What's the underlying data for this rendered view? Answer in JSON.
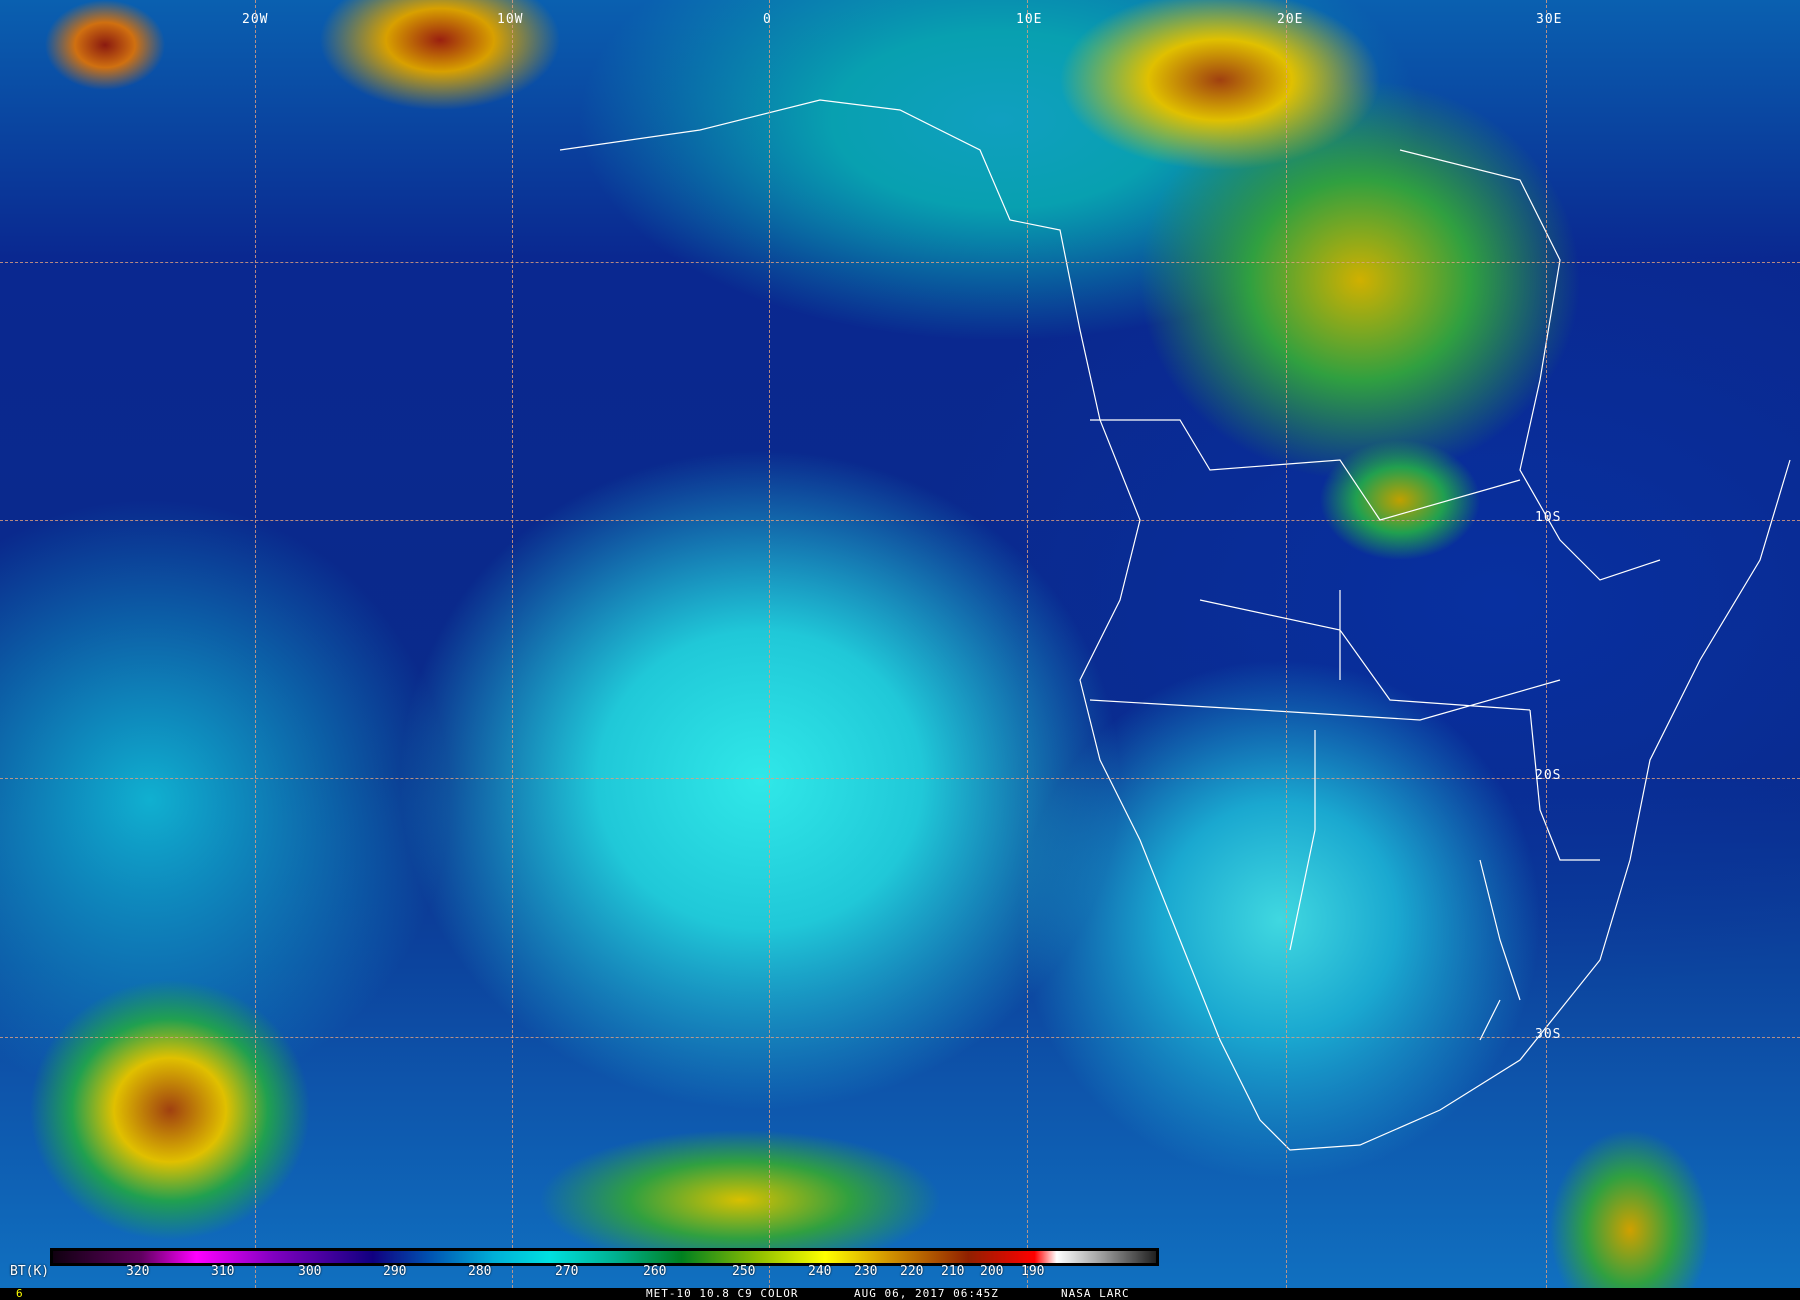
{
  "map": {
    "longitude_labels": [
      "20W",
      "10W",
      "0",
      "10E",
      "20E",
      "30E"
    ],
    "latitude_labels": [
      "10S",
      "20S",
      "30S"
    ],
    "grid_line_color": "#e0a080",
    "coastline_color": "#ffffff"
  },
  "colorbar": {
    "unit_label": "BT(K)",
    "ticks": [
      "320",
      "310",
      "300",
      "290",
      "280",
      "270",
      "260",
      "250",
      "240",
      "230",
      "220",
      "210",
      "200",
      "190"
    ]
  },
  "footer": {
    "frame_number": "6",
    "product": "MET-10 10.8 C9 COLOR",
    "datetime": "AUG 06, 2017 06:45Z",
    "source": "NASA LARC",
    "frame_color": "#ffff00"
  }
}
